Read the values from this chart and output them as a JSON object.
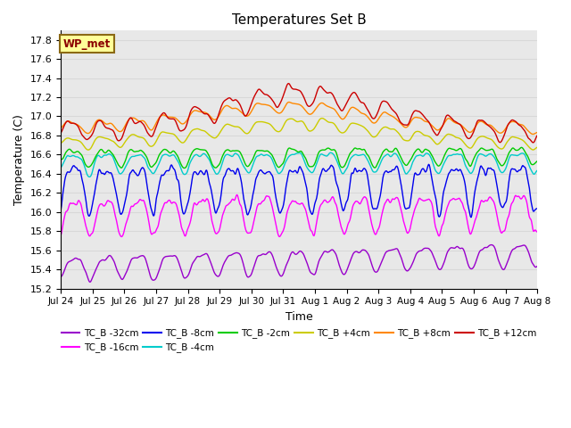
{
  "title": "Temperatures Set B",
  "xlabel": "Time",
  "ylabel": "Temperature (C)",
  "ylim": [
    15.2,
    17.9
  ],
  "annotation_text": "WP_met",
  "annotation_color": "#8B0000",
  "annotation_bg": "#FFFF99",
  "annotation_border": "#8B6914",
  "series_order": [
    "TC_B -32cm",
    "TC_B -16cm",
    "TC_B -8cm",
    "TC_B -4cm",
    "TC_B -2cm",
    "TC_B +4cm",
    "TC_B +8cm",
    "TC_B +12cm"
  ],
  "colors": {
    "TC_B -32cm": "#9900CC",
    "TC_B -16cm": "#FF00FF",
    "TC_B -8cm": "#0000EE",
    "TC_B -4cm": "#00CCCC",
    "TC_B -2cm": "#00CC00",
    "TC_B +4cm": "#CCCC00",
    "TC_B +8cm": "#FF8800",
    "TC_B +12cm": "#CC0000"
  },
  "tick_labels": [
    "Jul 24",
    "Jul 25",
    "Jul 26",
    "Jul 27",
    "Jul 28",
    "Jul 29",
    "Jul 30",
    "Jul 31",
    "Aug 1",
    "Aug 2",
    "Aug 3",
    "Aug 4",
    "Aug 5",
    "Aug 6",
    "Aug 7",
    "Aug 8"
  ],
  "grid_color": "#d8d8d8",
  "bg_color": "#e8e8e8"
}
